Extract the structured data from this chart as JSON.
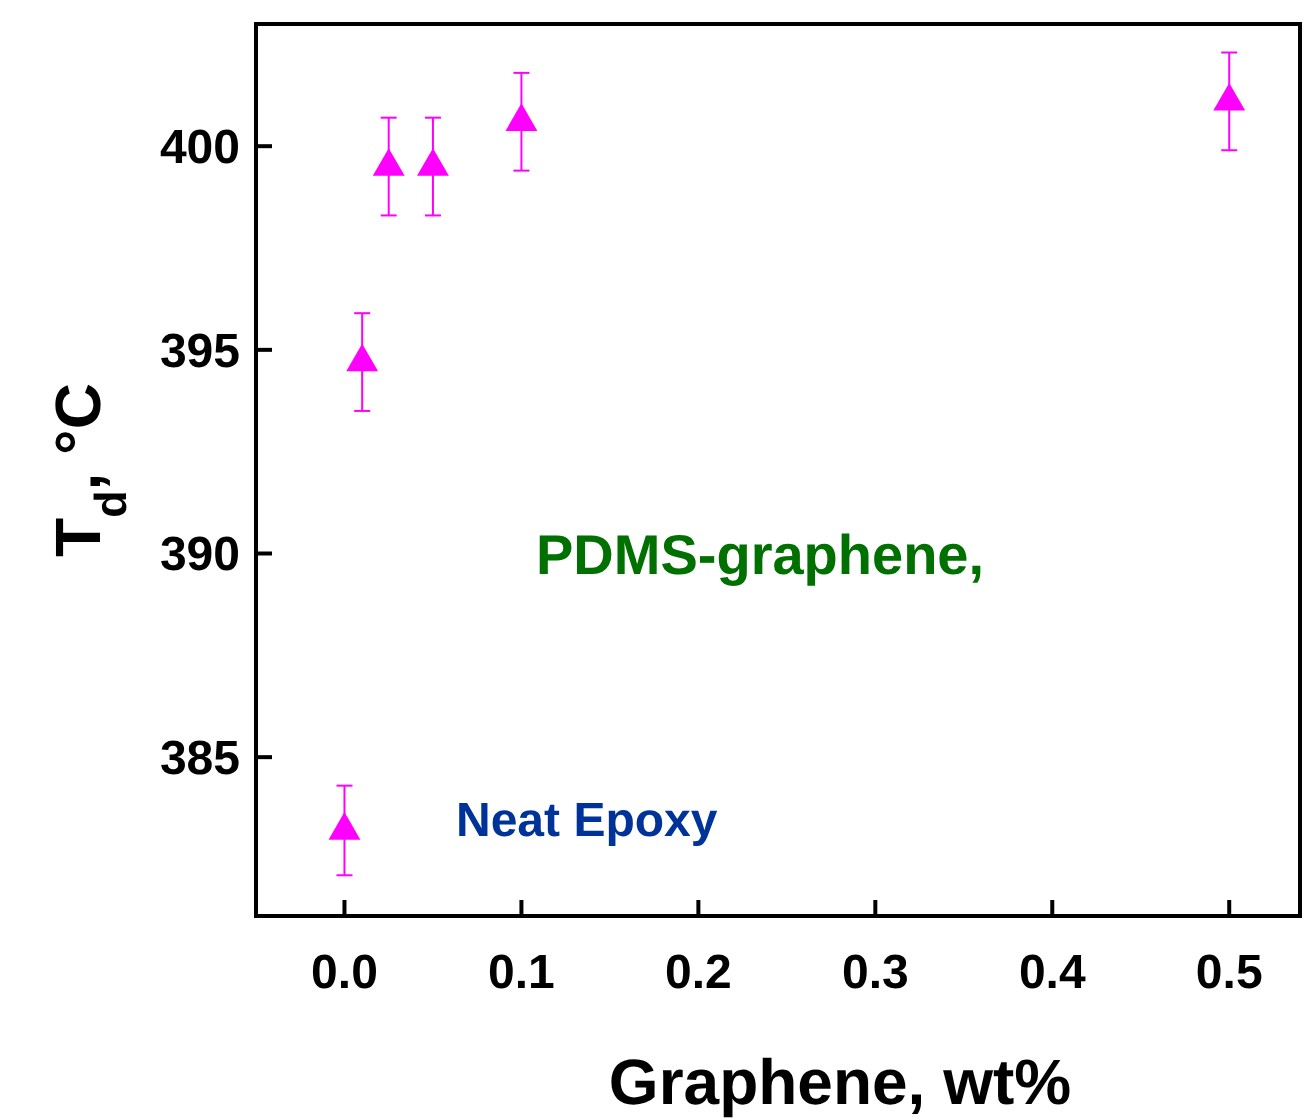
{
  "chart_data": {
    "type": "scatter",
    "xlabel": "Graphene, wt%",
    "ylabel": "T$_{d}$, °C",
    "annotations": [
      "PDMS-graphene,",
      "Neat Epoxy"
    ],
    "x": [
      0,
      0.01,
      0.025,
      0.05,
      0.1,
      0.5
    ],
    "series": [
      {
        "color": "#ff00ff",
        "values": [
          383.2,
          394.7,
          399.5,
          399.5,
          400.6,
          401.1
        ],
        "errors": [
          1.1,
          1.2,
          1.2,
          1.2,
          1.2,
          1.2
        ]
      }
    ],
    "xlim": [
      -0.05,
      0.54
    ],
    "xticks": [
      {
        "value": 0,
        "label": "0.0"
      },
      0.1,
      0.2,
      0.3,
      0.4,
      0.5
    ],
    "ylim": [
      381.1,
      403
    ],
    "yticks": [
      385,
      390,
      395,
      400
    ],
    "marker": "triangle",
    "grid": false
  }
}
